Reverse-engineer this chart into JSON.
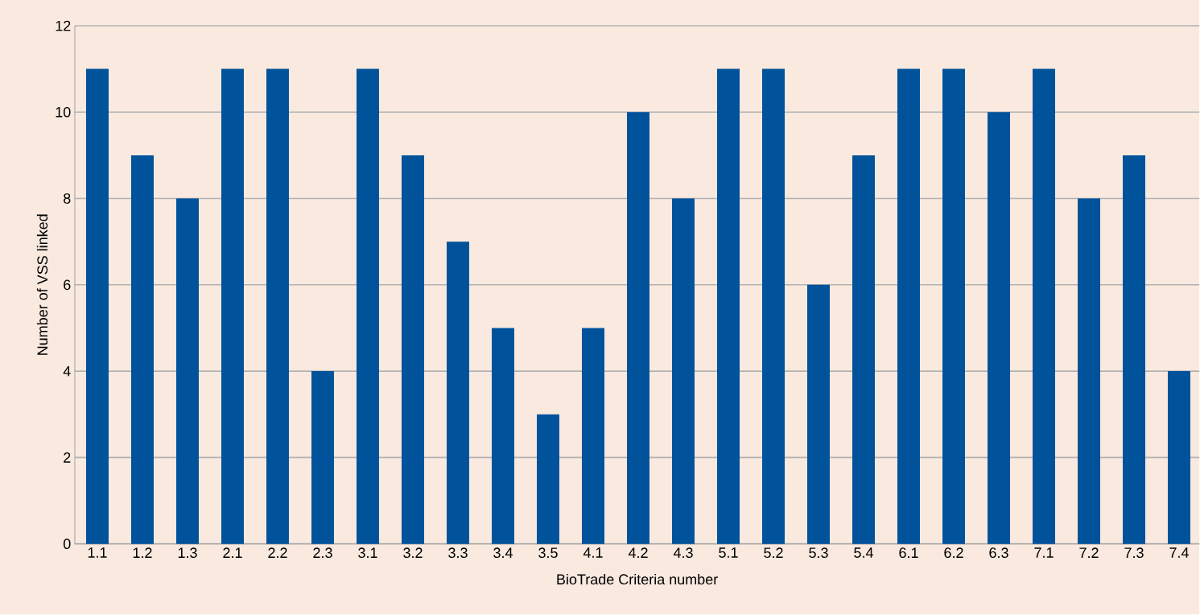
{
  "chart_data": {
    "type": "bar",
    "xlabel": "BioTrade Criteria number",
    "ylabel": "Number of VSS linked",
    "categories": [
      "1.1",
      "1.2",
      "1.3",
      "2.1",
      "2.2",
      "2.3",
      "3.1",
      "3.2",
      "3.3",
      "3.4",
      "3.5",
      "4.1",
      "4.2",
      "4.3",
      "5.1",
      "5.2",
      "5.3",
      "5.4",
      "6.1",
      "6.2",
      "6.3",
      "7.1",
      "7.2",
      "7.3",
      "7.4"
    ],
    "values": [
      11,
      9,
      8,
      11,
      11,
      4,
      11,
      9,
      7,
      5,
      3,
      5,
      10,
      8,
      11,
      11,
      6,
      9,
      11,
      11,
      10,
      11,
      8,
      9,
      4
    ],
    "color": "#00529b",
    "ylim": [
      0,
      12
    ],
    "yticks": [
      0,
      2,
      4,
      6,
      8,
      10,
      12
    ],
    "grid": "y"
  }
}
